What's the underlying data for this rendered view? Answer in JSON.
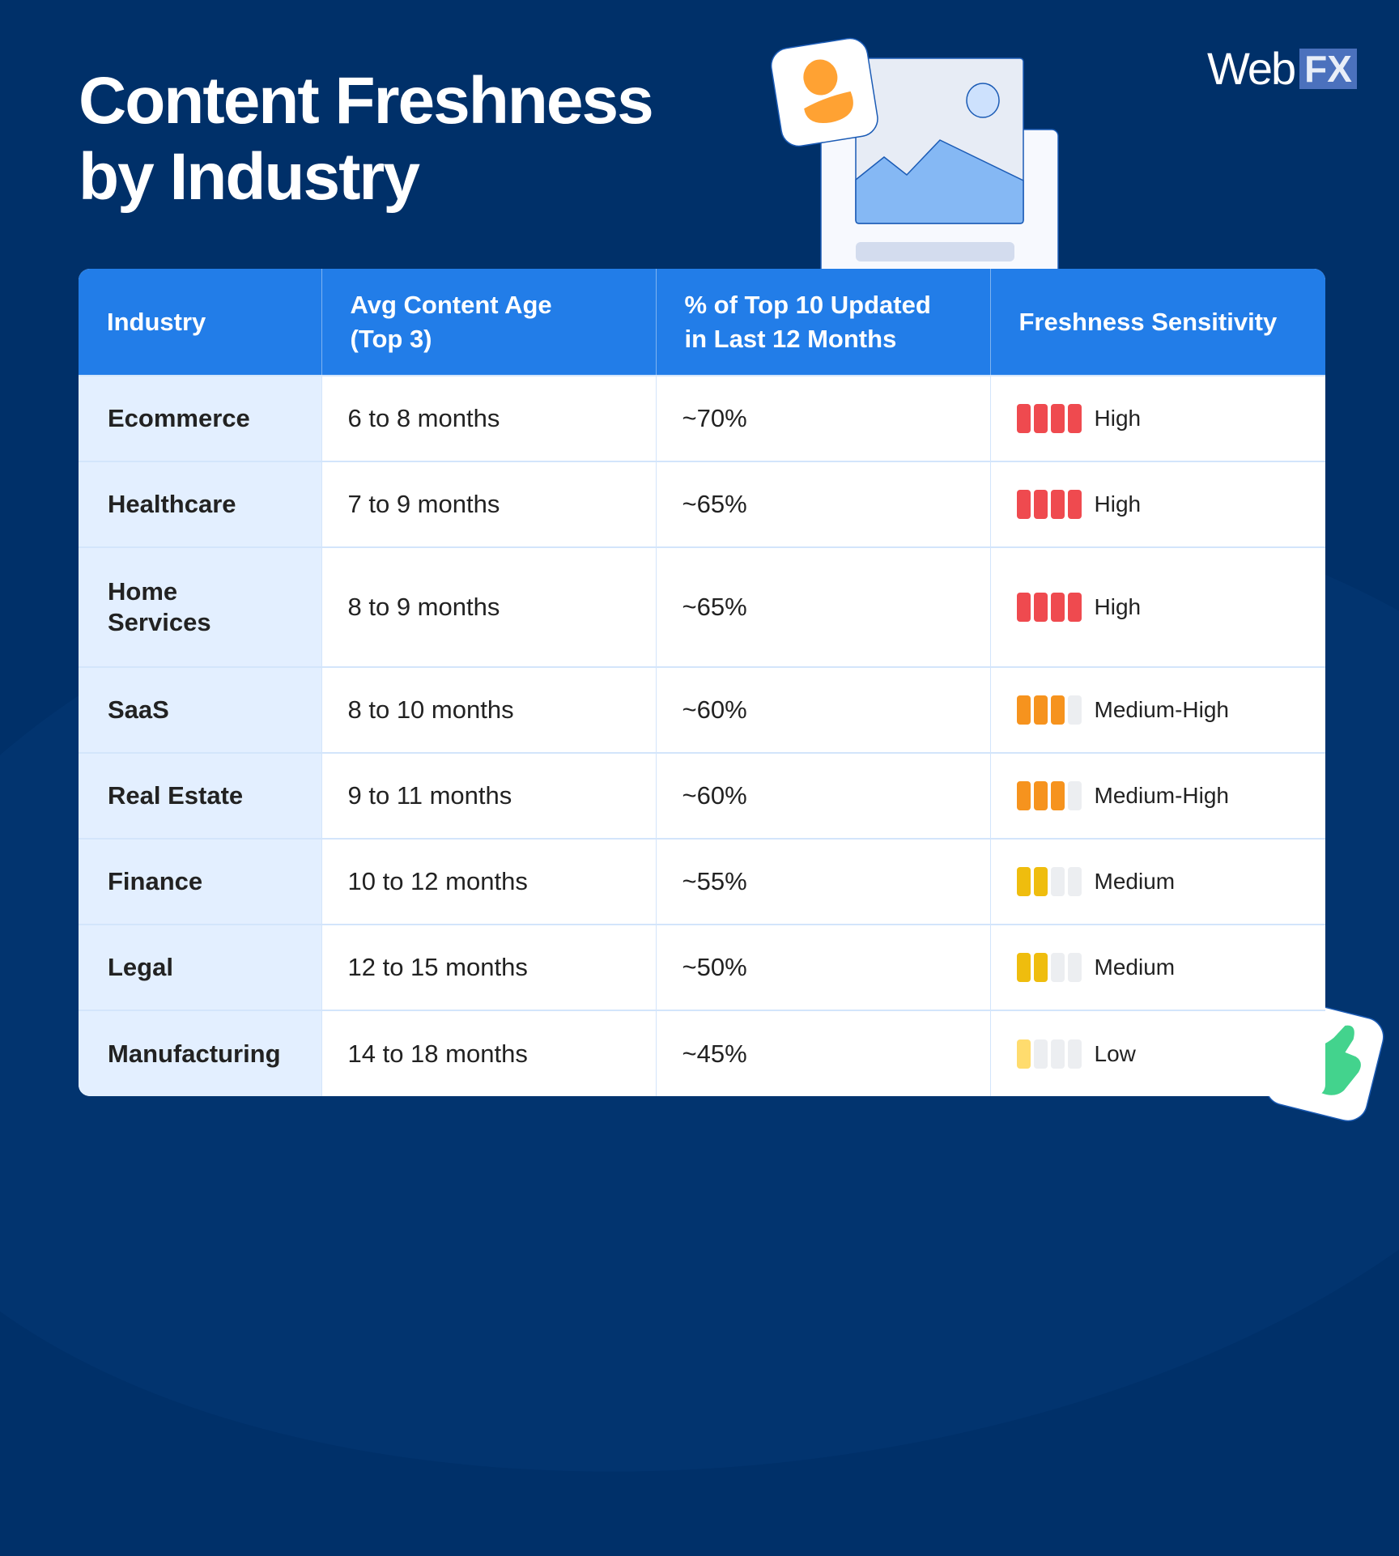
{
  "title": {
    "line1": "Content Freshness",
    "line2": "by Industry"
  },
  "logo": {
    "web": "Web",
    "fx": "FX"
  },
  "colors": {
    "background": "#003069",
    "header": "#227de8",
    "high": "#ef4a4f",
    "medium_high": "#f6931e",
    "medium": "#efbd0e",
    "low": "#ffdc6e",
    "empty": "#eceef1"
  },
  "table": {
    "headers": [
      "Industry",
      "Avg Content Age (Top 3)",
      "% of Top 10 Updated in Last 12 Months",
      "Freshness Sensitivity"
    ],
    "rows": [
      {
        "industry": "Ecommerce",
        "age": "6 to 8 months",
        "pct": "~70%",
        "level": 4,
        "sensitivity": "High",
        "color": "#ef4a4f"
      },
      {
        "industry": "Healthcare",
        "age": "7 to 9 months",
        "pct": "~65%",
        "level": 4,
        "sensitivity": "High",
        "color": "#ef4a4f"
      },
      {
        "industry": "Home Services",
        "age": "8 to 9 months",
        "pct": "~65%",
        "level": 4,
        "sensitivity": "High",
        "color": "#ef4a4f"
      },
      {
        "industry": "SaaS",
        "age": "8 to 10 months",
        "pct": "~60%",
        "level": 3,
        "sensitivity": "Medium-High",
        "color": "#f6931e"
      },
      {
        "industry": "Real Estate",
        "age": "9 to 11 months",
        "pct": "~60%",
        "level": 3,
        "sensitivity": "Medium-High",
        "color": "#f6931e"
      },
      {
        "industry": "Finance",
        "age": "10 to 12 months",
        "pct": "~55%",
        "level": 2,
        "sensitivity": "Medium",
        "color": "#efbd0e"
      },
      {
        "industry": "Legal",
        "age": "12 to 15 months",
        "pct": "~50%",
        "level": 2,
        "sensitivity": "Medium",
        "color": "#efbd0e"
      },
      {
        "industry": "Manufacturing",
        "age": "14 to 18 months",
        "pct": "~45%",
        "level": 1,
        "sensitivity": "Low",
        "color": "#ffdc6e"
      }
    ]
  },
  "icons": [
    "image-document-icon",
    "user-icon",
    "thumbs-up-icon"
  ]
}
